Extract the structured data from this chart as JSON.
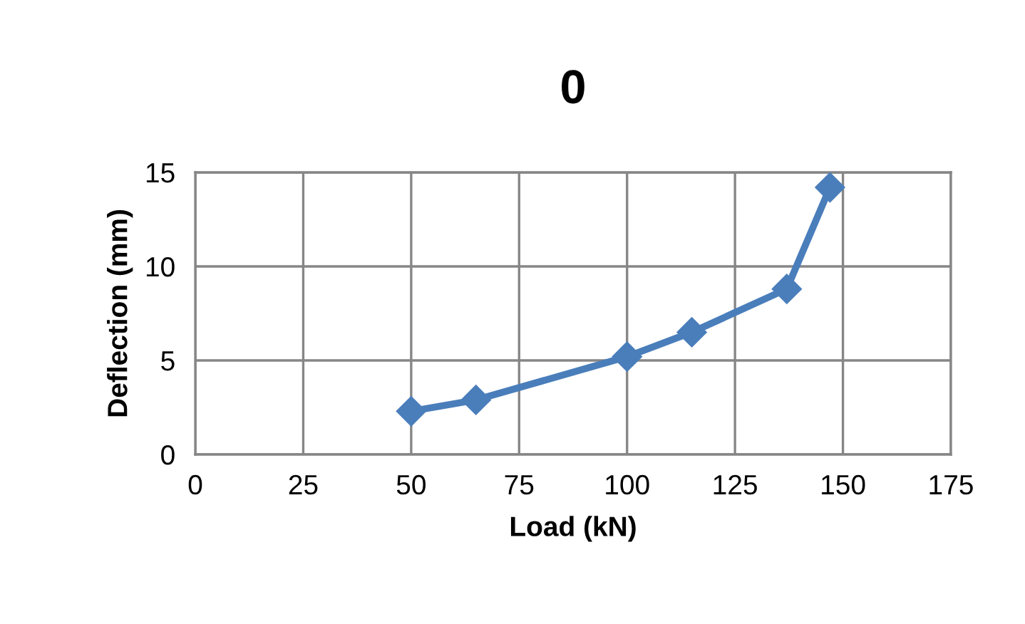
{
  "chart_data": {
    "type": "line",
    "title": "0",
    "xlabel": "Load (kN)",
    "ylabel": "Deflection (mm)",
    "x": [
      50,
      65,
      100,
      115,
      137,
      147
    ],
    "series": [
      {
        "color": "#4a7ebb",
        "values": [
          2.3,
          2.9,
          5.2,
          6.5,
          8.8,
          14.2
        ]
      }
    ],
    "xlim": [
      0,
      175
    ],
    "xticks": [
      0,
      25,
      50,
      75,
      100,
      125,
      150,
      175
    ],
    "ylim": [
      0,
      15
    ],
    "yticks": [
      0,
      5,
      10,
      15
    ],
    "grid": true,
    "marker": "diamond",
    "line_style": "solid"
  }
}
